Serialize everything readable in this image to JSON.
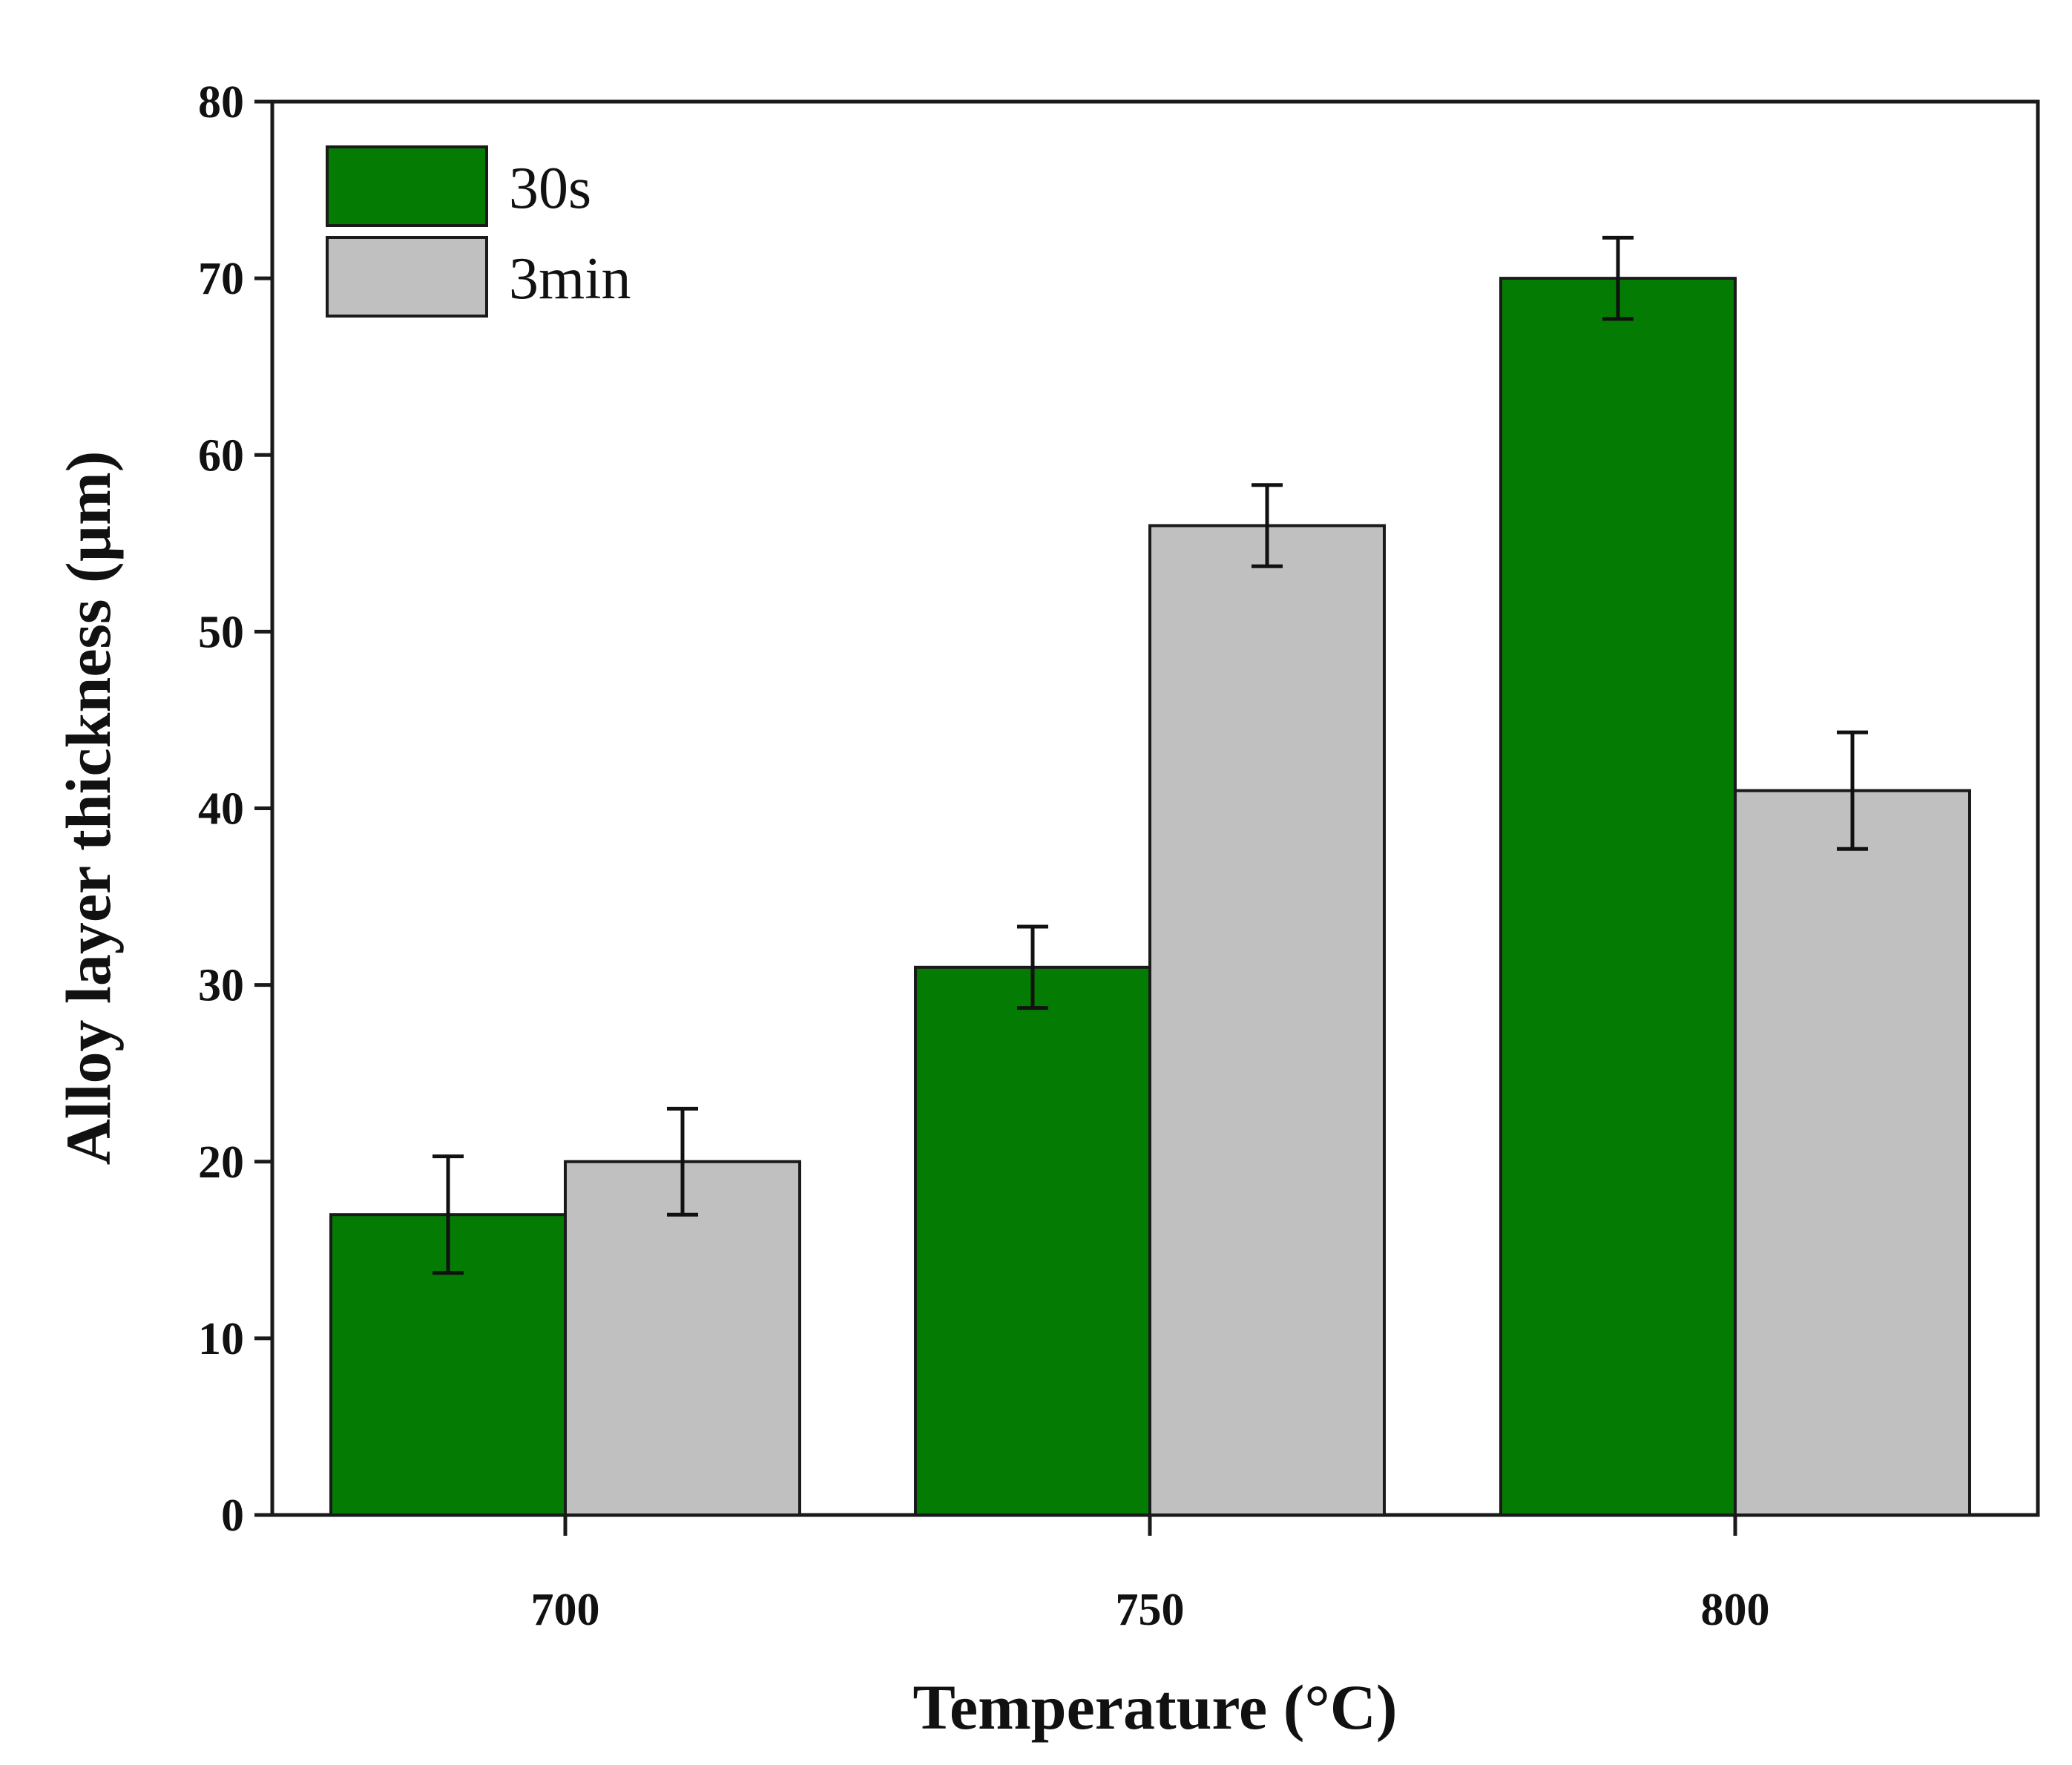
{
  "chart_data": {
    "type": "bar",
    "title": "",
    "xlabel": "Temperature (°C)",
    "ylabel": "Alloy layer thickness (µm)",
    "categories": [
      "700",
      "750",
      "800"
    ],
    "ylim": [
      0,
      80
    ],
    "yticks": [
      0,
      10,
      20,
      30,
      40,
      50,
      60,
      70,
      80
    ],
    "yticklabels": [
      "0",
      "10",
      "20",
      "30",
      "40",
      "50",
      "60",
      "70",
      "80"
    ],
    "grid": false,
    "legend_position": "top-left",
    "series": [
      {
        "name": "30s",
        "color": "#047c04",
        "values": [
          17,
          31,
          70
        ],
        "errors": [
          3.3,
          2.3,
          2.3
        ]
      },
      {
        "name": "3min",
        "color": "#c0c0c0",
        "values": [
          20,
          56,
          41
        ],
        "errors": [
          3.0,
          2.3,
          3.3
        ]
      }
    ]
  }
}
